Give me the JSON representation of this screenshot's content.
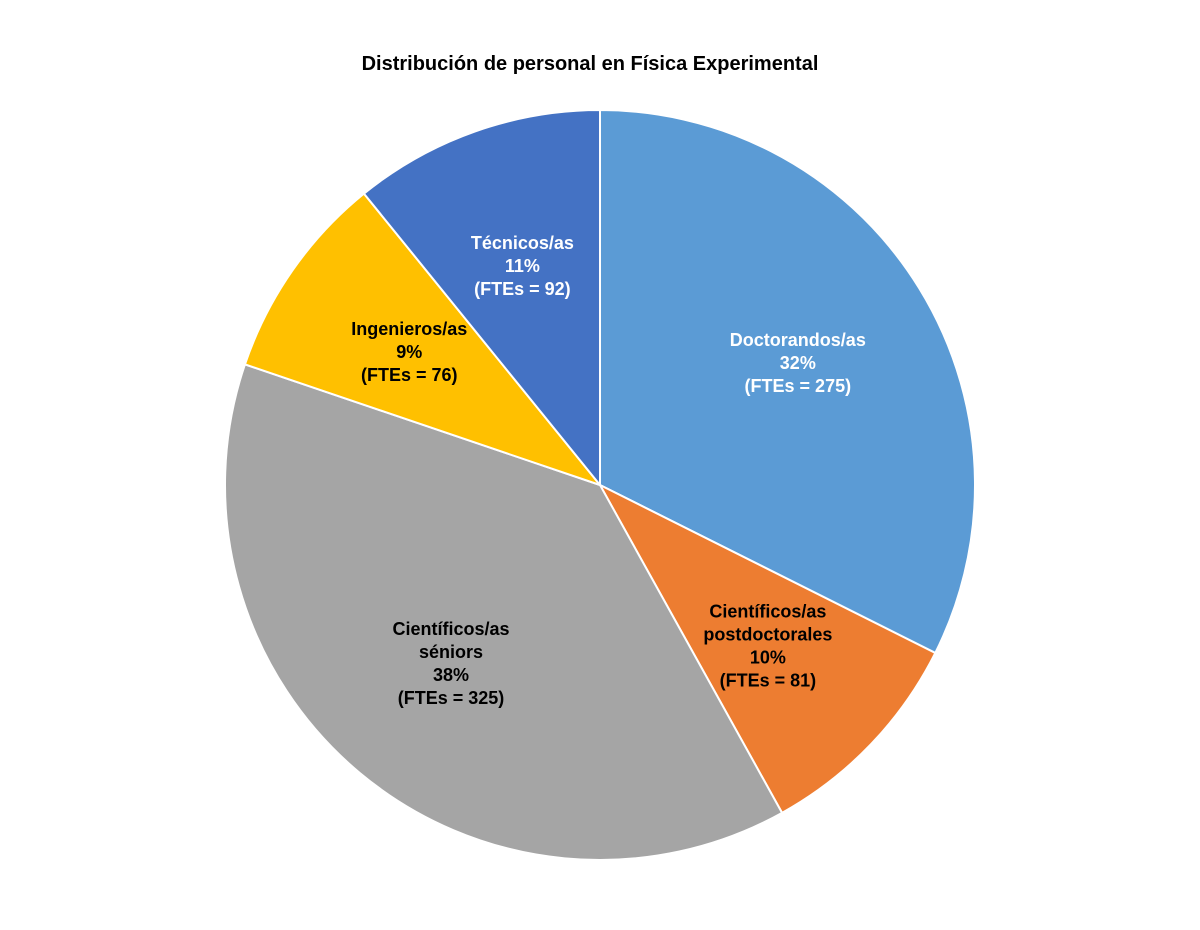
{
  "chart_data": {
    "type": "pie",
    "title": "Distribución de personal en Física Experimental",
    "slices": [
      {
        "label": "Doctorandos/as",
        "percent_label": "32%",
        "fte_label": "(FTEs = 275)",
        "value": 275,
        "color": "#5B9BD5",
        "text_color": "#ffffff"
      },
      {
        "label": "Científicos/as postdoctorales",
        "percent_label": "10%",
        "fte_label": "(FTEs = 81)",
        "value": 81,
        "color": "#ED7D31",
        "text_color": "#000000"
      },
      {
        "label": "Científicos/as séniors",
        "percent_label": "38%",
        "fte_label": "(FTEs = 325)",
        "value": 325,
        "color": "#A5A5A5",
        "text_color": "#000000"
      },
      {
        "label": "Ingenieros/as",
        "percent_label": "9%",
        "fte_label": "(FTEs = 76)",
        "value": 76,
        "color": "#FFC000",
        "text_color": "#000000"
      },
      {
        "label": "Técnicos/as",
        "percent_label": "11%",
        "fte_label": "(FTEs = 92)",
        "value": 92,
        "color": "#4472C4",
        "text_color": "#ffffff"
      }
    ],
    "start_angle": "12 o'clock",
    "direction": "clockwise",
    "legend": "none"
  }
}
